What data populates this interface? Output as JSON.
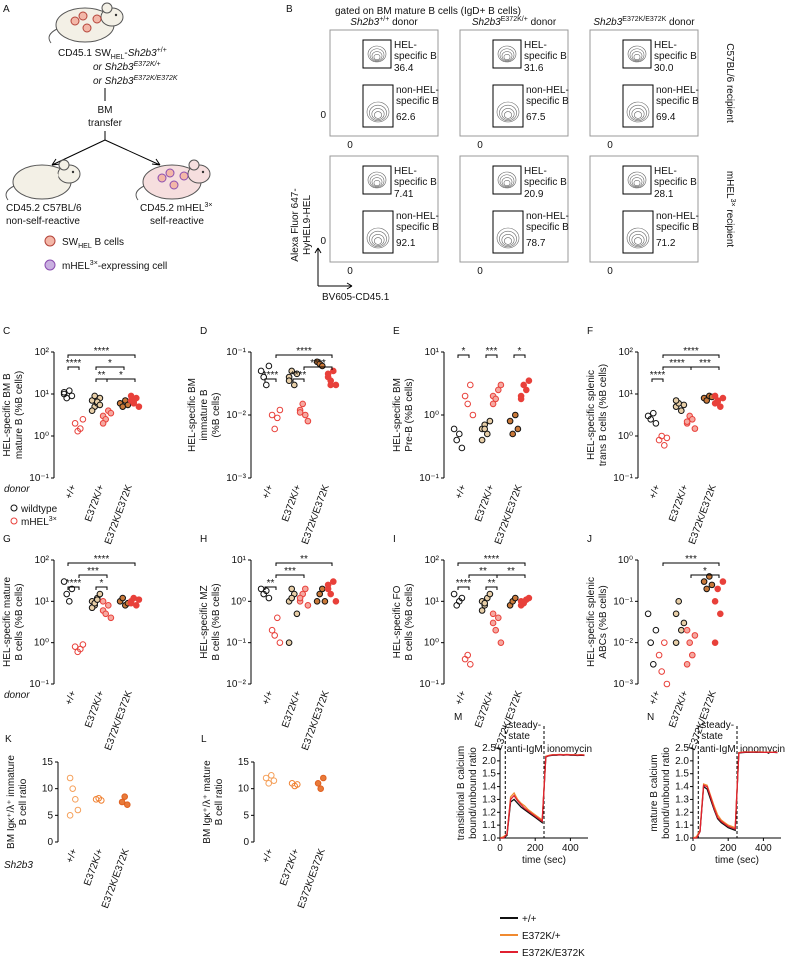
{
  "panel_a": {
    "letter": "A",
    "donor": [
      "CD45.1 SW",
      "HEL",
      "-",
      "Sh2b3",
      "+/+"
    ],
    "or1": [
      "or ",
      "Sh2b3",
      "E372K/+"
    ],
    "or2": [
      "or ",
      "Sh2b3",
      "E372K/E372K"
    ],
    "transfer": [
      "BM",
      "transfer"
    ],
    "recipient1": [
      "CD45.2 C57BL/6",
      "non-self-reactive"
    ],
    "recipient2": [
      "CD45.2 mHEL",
      "3×"
    ],
    "self_reactive": "self-reactive",
    "legend1": [
      "SW",
      "HEL",
      " B cells"
    ],
    "legend2": [
      "mHEL",
      "3×",
      "-expressing cell"
    ]
  },
  "panel_b": {
    "letter": "B",
    "title": "gated on BM mature B cells (IgD+ B cells)",
    "columns": [
      [
        "Sh2b3",
        "+/+",
        " donor"
      ],
      [
        "Sh2b3",
        "E372K/+",
        " donor"
      ],
      [
        "Sh2b3",
        "E372K/E372K",
        " donor"
      ]
    ],
    "column_colors": [
      "#111111",
      "#e8a03c",
      "#e0603a"
    ],
    "rows": [
      [
        "C57BL/6 recipient"
      ],
      [
        "mHEL",
        "3×",
        " recipient"
      ]
    ],
    "row_colors": [
      "#111111",
      "#c0283a"
    ],
    "gate_labels": {
      "hel": [
        "HEL-",
        "specific B"
      ],
      "non": [
        "non-HEL-",
        "specific B"
      ]
    },
    "plots": [
      [
        {
          "hel": "36.4",
          "non": "62.6"
        },
        {
          "hel": "31.6",
          "non": "67.5"
        },
        {
          "hel": "30.0",
          "non": "69.4"
        }
      ],
      [
        {
          "hel": "7.41",
          "non": "92.1"
        },
        {
          "hel": "20.9",
          "non": "78.7"
        },
        {
          "hel": "28.1",
          "non": "71.2"
        }
      ]
    ],
    "zero": "0",
    "y_axis_label": [
      "Alexa Fluor 647-",
      "HyHEL9-HEL"
    ],
    "x_axis_label": "BV605-CD45.1"
  },
  "genotypes": [
    "+/+",
    "E372K/+",
    "E372K/E372K"
  ],
  "donor_label": "donor",
  "gene_label": "Sh2b3",
  "dot_legend": [
    [
      "wildtype"
    ],
    [
      "mHEL",
      "3×"
    ]
  ],
  "dot_style": {
    "fill": [
      "none",
      "none",
      "#e8cfa8",
      "#f6a8a0",
      "#c9793a",
      "#e8403a"
    ],
    "stroke": [
      "#111111",
      "#e8403a",
      "#111111",
      "#e8403a",
      "#111111",
      "#e8403a"
    ]
  },
  "dot_panels": [
    {
      "letter": "C",
      "ylabel": [
        "HEL-specific BM B",
        "mature B (%B cells)"
      ],
      "log": true,
      "ylim": [
        0.1,
        100
      ],
      "yticks": [
        {
          "value": 0.1,
          "label": "10⁻¹"
        },
        {
          "value": 1,
          "label": "10⁰"
        },
        {
          "value": 10,
          "label": "10¹"
        },
        {
          "value": 100,
          "label": "10²"
        }
      ],
      "columns": [
        [
          10,
          8,
          12,
          9,
          11
        ],
        [
          2,
          1.3,
          1.5,
          2.5
        ],
        [
          7,
          5,
          6,
          8,
          4,
          9,
          6.5,
          5.5
        ],
        [
          3,
          2.5,
          4,
          3.5,
          2
        ],
        [
          6,
          5,
          7,
          5.5
        ],
        [
          7,
          6,
          8,
          5,
          9,
          6.5
        ]
      ],
      "significance": [
        "****",
        "****",
        "*",
        "**",
        "*"
      ]
    },
    {
      "letter": "D",
      "ylabel": [
        "HEL-specific BM",
        "immature B",
        "(%B cells)"
      ],
      "log": true,
      "ylim": [
        0.001,
        0.1
      ],
      "yticks": [
        {
          "value": 0.001,
          "label": "10⁻³"
        },
        {
          "value": 0.01,
          "label": "10⁻²"
        },
        {
          "value": 0.1,
          "label": "10⁻¹"
        }
      ],
      "columns": [
        [
          0.05,
          0.04,
          0.03,
          0.06
        ],
        [
          0.01,
          0.006,
          0.009,
          0.012
        ],
        [
          0.04,
          0.05,
          0.03,
          0.045,
          0.035
        ],
        [
          0.012,
          0.015,
          0.01,
          0.008,
          0.011
        ],
        [
          0.07,
          0.065,
          0.06
        ],
        [
          0.04,
          0.035,
          0.05,
          0.03,
          0.045,
          0.03
        ]
      ],
      "significance": [
        "****",
        "****",
        "****",
        "****"
      ]
    },
    {
      "letter": "E",
      "ylabel": [
        "HEL-specific BM",
        "Pre-B (%B cells)"
      ],
      "log": true,
      "ylim": [
        0.1,
        10
      ],
      "yticks": [
        {
          "value": 0.1,
          "label": "10⁻¹"
        },
        {
          "value": 1,
          "label": "10⁰"
        },
        {
          "value": 10,
          "label": "10¹"
        }
      ],
      "columns": [
        [
          0.6,
          0.4,
          0.5,
          0.3
        ],
        [
          2,
          1.5,
          3,
          1
        ],
        [
          0.6,
          0.7,
          0.5,
          0.8,
          0.4,
          0.6
        ],
        [
          2,
          1.8,
          2.5,
          3,
          1.5
        ],
        [
          0.8,
          0.5,
          1,
          0.6
        ],
        [
          2,
          3,
          2.5,
          3.5,
          1.8
        ]
      ],
      "significance": [
        "*",
        "***",
        "*"
      ]
    },
    {
      "letter": "F",
      "ylabel": [
        "HEL-specific splenic",
        "trans B cells (%B cells)"
      ],
      "log": true,
      "ylim": [
        0.1,
        100
      ],
      "yticks": [
        {
          "value": 0.1,
          "label": "10⁻¹"
        },
        {
          "value": 1,
          "label": "10⁰"
        },
        {
          "value": 10,
          "label": "10¹"
        },
        {
          "value": 100,
          "label": "10²"
        }
      ],
      "columns": [
        [
          3,
          2.5,
          3.5,
          2
        ],
        [
          0.8,
          1,
          0.6,
          0.9
        ],
        [
          5,
          6,
          4,
          5.5,
          7
        ],
        [
          2,
          3,
          2.5,
          1.5,
          2.2
        ],
        [
          8,
          7,
          9,
          8.5
        ],
        [
          6,
          7,
          5,
          8,
          9,
          6.5
        ]
      ],
      "significance": [
        "****",
        "****",
        "****",
        "***"
      ]
    },
    {
      "letter": "G",
      "ylabel": [
        "HEL-specific mature",
        "B cells (%B cells)"
      ],
      "log": true,
      "ylim": [
        0.1,
        100
      ],
      "yticks": [
        {
          "value": 0.1,
          "label": "10⁻¹"
        },
        {
          "value": 1,
          "label": "10⁰"
        },
        {
          "value": 10,
          "label": "10¹"
        },
        {
          "value": 100,
          "label": "10²"
        }
      ],
      "columns": [
        [
          30,
          15,
          10,
          20
        ],
        [
          0.8,
          0.6,
          0.7,
          0.9
        ],
        [
          10,
          8,
          12,
          15,
          7,
          9,
          11
        ],
        [
          6,
          5,
          8,
          4,
          10
        ],
        [
          10,
          12,
          8,
          9
        ],
        [
          10,
          12,
          8,
          11,
          9
        ]
      ],
      "significance": [
        "****",
        "****",
        "***",
        "*"
      ]
    },
    {
      "letter": "H",
      "ylabel": [
        "HEL-specific MZ",
        "B cells (%B cells)"
      ],
      "log": true,
      "ylim": [
        0.01,
        10
      ],
      "yticks": [
        {
          "value": 0.01,
          "label": "10⁻²"
        },
        {
          "value": 0.1,
          "label": "10⁻¹"
        },
        {
          "value": 1,
          "label": "10⁰"
        },
        {
          "value": 10,
          "label": "10¹"
        }
      ],
      "columns": [
        [
          2,
          1.5,
          1.8,
          1.2
        ],
        [
          0.2,
          0.15,
          0.4,
          0.1
        ],
        [
          1,
          2,
          1.5,
          0.5,
          0.1,
          1.2
        ],
        [
          1,
          1.5,
          2,
          0.8,
          1.2
        ],
        [
          1,
          1.5,
          2,
          1
        ],
        [
          2,
          1.5,
          3,
          1,
          2.5
        ]
      ],
      "significance": [
        "**",
        "***",
        "**"
      ]
    },
    {
      "letter": "I",
      "ylabel": [
        "HEL-specific FO",
        "B cells (%B cells)"
      ],
      "log": true,
      "ylim": [
        0.1,
        100
      ],
      "yticks": [
        {
          "value": 0.1,
          "label": "10⁻¹"
        },
        {
          "value": 1,
          "label": "10⁰"
        },
        {
          "value": 10,
          "label": "10¹"
        },
        {
          "value": 100,
          "label": "10²"
        }
      ],
      "columns": [
        [
          15,
          8,
          10,
          12
        ],
        [
          0.4,
          0.5,
          0.3
        ],
        [
          10,
          8,
          12,
          15,
          6,
          9
        ],
        [
          3,
          2,
          4,
          1,
          5
        ],
        [
          8,
          10,
          12
        ],
        [
          10,
          9,
          11,
          12,
          8
        ]
      ],
      "significance": [
        "****",
        "****",
        "**",
        "**",
        "**"
      ]
    },
    {
      "letter": "J",
      "ylabel": [
        "HEL-specific splenic",
        "ABCs (%B cells)"
      ],
      "log": true,
      "ylim": [
        0.001,
        1
      ],
      "yticks": [
        {
          "value": 0.001,
          "label": "10⁻³"
        },
        {
          "value": 0.01,
          "label": "10⁻²"
        },
        {
          "value": 0.1,
          "label": "10⁻¹"
        },
        {
          "value": 1,
          "label": "10⁰"
        }
      ],
      "columns": [
        [
          0.05,
          0.01,
          0.003,
          0.02
        ],
        [
          0.005,
          0.002,
          0.01,
          0.001
        ],
        [
          0.05,
          0.1,
          0.02,
          0.03,
          0.01
        ],
        [
          0.02,
          0.01,
          0.005,
          0.015,
          0.003
        ],
        [
          0.3,
          0.2,
          0.4,
          0.25
        ],
        [
          0.1,
          0.2,
          0.05,
          0.3,
          0.01
        ]
      ],
      "significance": [
        "***",
        "*"
      ]
    }
  ],
  "ratio_style": {
    "fill": [
      "none",
      "none",
      "#e87a3a"
    ],
    "stroke": [
      "#f5a05a",
      "#f08030",
      "#e06020"
    ]
  },
  "ratio_panels": [
    {
      "letter": "K",
      "ylabel": [
        "BM Igκ⁺/λ⁺ immature",
        "B cell ratio"
      ],
      "ylim": [
        0,
        15
      ],
      "yticks": [
        0,
        5,
        10,
        15
      ],
      "columns": [
        [
          12,
          10,
          8,
          6,
          5
        ],
        [
          8,
          8.2,
          7.8
        ],
        [
          7.5,
          8.5,
          7
        ]
      ]
    },
    {
      "letter": "L",
      "ylabel": [
        "BM Igκ⁺/λ⁺ mature",
        "B cell ratio"
      ],
      "ylim": [
        0,
        15
      ],
      "yticks": [
        0,
        5,
        10,
        15
      ],
      "columns": [
        [
          12,
          11,
          12.5,
          11.5
        ],
        [
          11,
          10.5,
          10.8
        ],
        [
          11,
          10,
          12
        ]
      ]
    }
  ],
  "calcium_series": [
    {
      "name": "+/+",
      "color": "#111111"
    },
    {
      "name": "E372K/+",
      "color": "#f08a30"
    },
    {
      "name": "E372K/E372K",
      "color": "#e02030"
    }
  ],
  "calcium_panels": [
    {
      "letter": "M",
      "ylabel": [
        "transitional B calcium",
        "bound/unbound ratio"
      ],
      "xlabel": "time (sec)",
      "xlim": [
        0,
        500
      ],
      "xticks": [
        0,
        200,
        400
      ],
      "ylim": [
        1.0,
        2.5
      ],
      "yticks": [
        {
          "value": 1.0,
          "label": "1.0"
        },
        1.1,
        1.2,
        1.3,
        1.4,
        1.5,
        {
          "value": 2.0,
          "label": "2.0"
        },
        2.5
      ],
      "markers": [
        30,
        250
      ],
      "steady": [
        "steady-",
        "state"
      ],
      "stim": "anti-IgM",
      "iono": "ionomycin",
      "x": [
        0,
        20,
        40,
        60,
        80,
        100,
        120,
        140,
        160,
        180,
        200,
        220,
        240,
        260,
        280,
        300,
        320,
        340,
        360,
        380,
        400,
        420,
        440,
        460,
        480
      ],
      "series_values": [
        [
          1.0,
          1.0,
          1.02,
          1.28,
          1.3,
          1.27,
          1.24,
          1.22,
          1.2,
          1.18,
          1.16,
          1.14,
          1.12,
          2.15,
          2.2,
          2.22,
          2.22,
          2.23,
          2.22,
          2.23,
          2.22,
          2.22,
          2.21,
          2.22,
          2.21
        ],
        [
          1.0,
          1.01,
          1.03,
          1.32,
          1.35,
          1.3,
          1.27,
          1.25,
          1.22,
          1.2,
          1.18,
          1.16,
          1.14,
          2.18,
          2.22,
          2.24,
          2.24,
          2.25,
          2.24,
          2.25,
          2.24,
          2.24,
          2.23,
          2.24,
          2.23
        ],
        [
          1.0,
          1.0,
          1.03,
          1.3,
          1.33,
          1.29,
          1.26,
          1.23,
          1.21,
          1.19,
          1.17,
          1.15,
          1.13,
          2.16,
          2.21,
          2.23,
          2.23,
          2.24,
          2.23,
          2.24,
          2.23,
          2.23,
          2.22,
          2.23,
          2.22
        ]
      ]
    },
    {
      "letter": "N",
      "ylabel": [
        "mature B calcium",
        "bound/unbound ratio"
      ],
      "xlabel": "time (sec)",
      "xlim": [
        0,
        500
      ],
      "xticks": [
        0,
        200,
        400
      ],
      "ylim": [
        1.0,
        2.5
      ],
      "yticks": [
        {
          "value": 1.0,
          "label": "1.0"
        },
        1.1,
        1.2,
        1.3,
        1.4,
        1.5,
        {
          "value": 2.0,
          "label": "2.0"
        },
        2.5
      ],
      "markers": [
        30,
        250
      ],
      "steady": [
        "steady-",
        "state"
      ],
      "stim": "anti-IgM",
      "iono": "ionomycin",
      "x": [
        0,
        20,
        40,
        60,
        80,
        100,
        120,
        140,
        160,
        180,
        200,
        220,
        240,
        260,
        280,
        300,
        320,
        340,
        360,
        380,
        400,
        420,
        440,
        460,
        480
      ],
      "series_values": [
        [
          1.0,
          1.0,
          1.05,
          1.4,
          1.38,
          1.3,
          1.22,
          1.15,
          1.12,
          1.1,
          1.08,
          1.07,
          1.06,
          2.3,
          2.32,
          2.33,
          2.33,
          2.34,
          2.33,
          2.34,
          2.33,
          2.33,
          2.33,
          2.33,
          2.32
        ],
        [
          1.0,
          1.01,
          1.06,
          1.42,
          1.41,
          1.33,
          1.25,
          1.18,
          1.14,
          1.12,
          1.1,
          1.09,
          1.08,
          2.32,
          2.34,
          2.35,
          2.35,
          2.35,
          2.35,
          2.35,
          2.34,
          2.34,
          2.34,
          2.34,
          2.33
        ],
        [
          1.0,
          1.0,
          1.05,
          1.41,
          1.4,
          1.32,
          1.23,
          1.16,
          1.13,
          1.11,
          1.09,
          1.08,
          1.07,
          2.31,
          2.33,
          2.34,
          2.34,
          2.34,
          2.34,
          2.34,
          2.33,
          2.33,
          2.33,
          2.33,
          2.33
        ]
      ]
    }
  ]
}
